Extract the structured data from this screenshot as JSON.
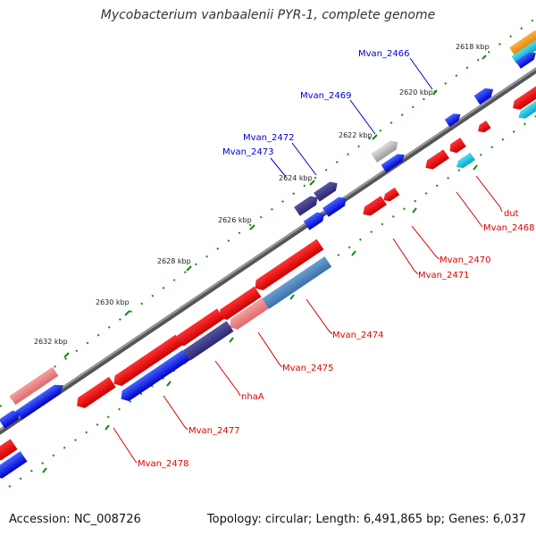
{
  "title": "Mycobacterium vanbaalenii PYR-1, complete genome",
  "accession_label": "Accession: NC_008726",
  "topology_label": "Topology: circular; Length: 6,491,865 bp; Genes: 6,037",
  "colors": {
    "forward_gene": "#0000ee",
    "reverse_gene": "#ee0000",
    "forward_label": "#0000cc",
    "reverse_label": "#dd0000",
    "backbone": "#777777",
    "tick": "#118811"
  },
  "ticks": [
    "2618 kbp",
    "2620 kbp",
    "2622 kbp",
    "2624 kbp",
    "2626 kbp",
    "2628 kbp",
    "2630 kbp",
    "2632 kbp"
  ],
  "forward_labels": [
    "Mvan_2466",
    "Mvan_2469",
    "Mvan_2472",
    "Mvan_2473"
  ],
  "reverse_labels": [
    "dut",
    "Mvan_2468",
    "Mvan_2470",
    "Mvan_2471",
    "Mvan_2474",
    "Mvan_2475",
    "nhaA",
    "Mvan_2477",
    "Mvan_2478"
  ]
}
